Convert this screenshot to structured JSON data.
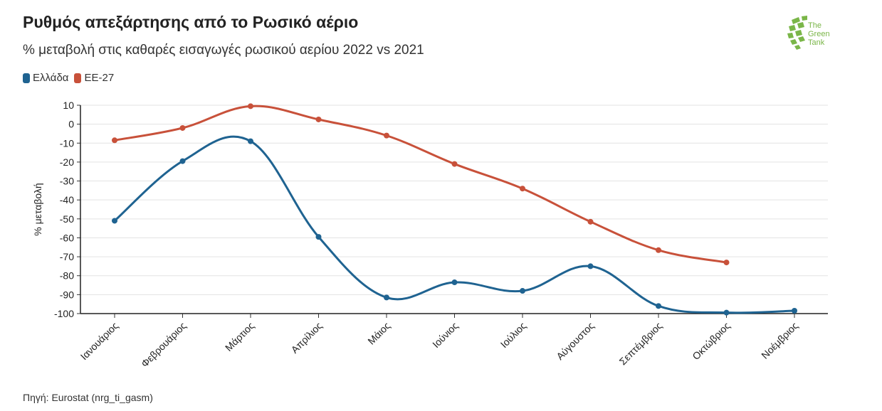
{
  "title": "Ρυθμός απεξάρτησης από το Ρωσικό αέριο",
  "subtitle": "% μεταβολή στις καθαρές εισαγωγές ρωσικού αερίου 2022 vs 2021",
  "source": "Πηγή: Eurostat (nrg_ti_gasm)",
  "logo": {
    "line1": "The",
    "line2": "Green",
    "line3": "Tank",
    "color": "#7ab648"
  },
  "chart_data": {
    "type": "line",
    "title": "Ρυθμός απεξάρτησης από το Ρωσικό αέριο",
    "xlabel": "",
    "ylabel": "% μεταβολή",
    "ylim": [
      -100,
      10
    ],
    "yticks": [
      10,
      0,
      -10,
      -20,
      -30,
      -40,
      -50,
      -60,
      -70,
      -80,
      -90,
      -100
    ],
    "grid": true,
    "legend_position": "top-left",
    "categories": [
      "Ιανουάριος",
      "Φεβρουάριος",
      "Μάρτιος",
      "Απρίλιος",
      "Μάιος",
      "Ιούνιος",
      "Ιούλιος",
      "Αύγουστος",
      "Σεπτέμβριος",
      "Οκτώβριος",
      "Νοέμβριος"
    ],
    "series": [
      {
        "name": "Ελλάδα",
        "color": "#1f6391",
        "values": [
          -51,
          -19.5,
          -9,
          -59.5,
          -91.5,
          -83.5,
          -88,
          -75,
          -96,
          -99.5,
          -98.5
        ]
      },
      {
        "name": "ΕΕ-27",
        "color": "#c8513a",
        "values": [
          -8.5,
          -2,
          9.5,
          2.5,
          -6,
          -21,
          -34,
          -51.5,
          -66.5,
          -73,
          null
        ]
      }
    ]
  }
}
